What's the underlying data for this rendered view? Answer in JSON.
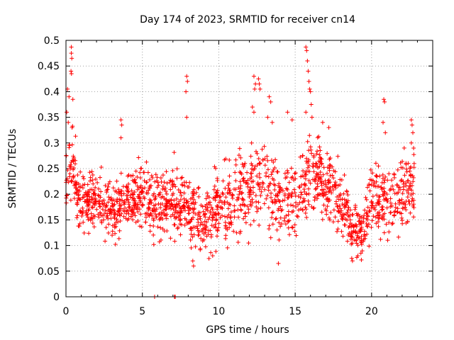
{
  "chart_data": {
    "type": "scatter",
    "title": "Day 174 of 2023, SRMTID for receiver cn14",
    "xlabel": "GPS time / hours",
    "ylabel": "SRMTID / TECUs",
    "xlim": [
      0,
      24
    ],
    "ylim": [
      0,
      0.5
    ],
    "xticks": [
      0,
      5,
      10,
      15,
      20
    ],
    "xtick_labels": [
      "0",
      "5",
      "10",
      "15",
      "20"
    ],
    "yticks": [
      0,
      0.05,
      0.1,
      0.15,
      0.2,
      0.25,
      0.3,
      0.35,
      0.4,
      0.45,
      0.5
    ],
    "ytick_labels": [
      "0",
      "0.05",
      "0.1",
      "0.15",
      "0.2",
      "0.25",
      "0.3",
      "0.35",
      "0.4",
      "0.45",
      "0.5"
    ],
    "grid": true,
    "marker": "+",
    "color": "#ff0000",
    "series": [
      {
        "name": "cn14",
        "x_range": [
          0,
          22.8
        ],
        "envelope": {
          "hours": [
            0,
            0.3,
            0.6,
            1,
            2,
            3,
            4,
            5,
            6,
            7,
            8,
            9,
            10,
            11,
            12,
            13,
            14,
            15,
            16,
            17,
            18,
            18.8,
            19.3,
            20,
            21,
            22,
            22.8
          ],
          "center": [
            0.22,
            0.27,
            0.22,
            0.18,
            0.19,
            0.17,
            0.18,
            0.2,
            0.17,
            0.19,
            0.17,
            0.15,
            0.17,
            0.19,
            0.22,
            0.22,
            0.18,
            0.19,
            0.25,
            0.22,
            0.19,
            0.13,
            0.13,
            0.19,
            0.19,
            0.2,
            0.22
          ],
          "spread": [
            0.05,
            0.08,
            0.06,
            0.05,
            0.05,
            0.05,
            0.05,
            0.06,
            0.06,
            0.06,
            0.06,
            0.05,
            0.06,
            0.07,
            0.08,
            0.08,
            0.06,
            0.07,
            0.07,
            0.06,
            0.06,
            0.04,
            0.04,
            0.06,
            0.06,
            0.06,
            0.06
          ]
        },
        "points": [
          [
            0.35,
            0.487
          ],
          [
            0.35,
            0.475
          ],
          [
            0.38,
            0.465
          ],
          [
            0.33,
            0.44
          ],
          [
            0.36,
            0.435
          ],
          [
            0.1,
            0.405
          ],
          [
            0.2,
            0.39
          ],
          [
            0.45,
            0.385
          ],
          [
            0.05,
            0.36
          ],
          [
            0.15,
            0.34
          ],
          [
            0.4,
            0.33
          ],
          [
            3.6,
            0.345
          ],
          [
            3.65,
            0.335
          ],
          [
            3.6,
            0.31
          ],
          [
            7.9,
            0.43
          ],
          [
            7.95,
            0.42
          ],
          [
            7.85,
            0.4
          ],
          [
            7.9,
            0.35
          ],
          [
            5.8,
            0.0
          ],
          [
            7.1,
            0.0
          ],
          [
            7.15,
            0.0
          ],
          [
            12.3,
            0.43
          ],
          [
            12.4,
            0.415
          ],
          [
            12.35,
            0.405
          ],
          [
            12.6,
            0.425
          ],
          [
            12.65,
            0.415
          ],
          [
            12.7,
            0.405
          ],
          [
            12.2,
            0.37
          ],
          [
            12.3,
            0.36
          ],
          [
            13.3,
            0.39
          ],
          [
            13.4,
            0.38
          ],
          [
            13.2,
            0.35
          ],
          [
            13.5,
            0.34
          ],
          [
            15.7,
            0.487
          ],
          [
            15.75,
            0.48
          ],
          [
            15.8,
            0.46
          ],
          [
            15.85,
            0.44
          ],
          [
            15.9,
            0.42
          ],
          [
            15.95,
            0.405
          ],
          [
            16.0,
            0.4
          ],
          [
            16.05,
            0.375
          ],
          [
            15.7,
            0.36
          ],
          [
            16.1,
            0.35
          ],
          [
            14.5,
            0.36
          ],
          [
            14.8,
            0.345
          ],
          [
            16.8,
            0.34
          ],
          [
            17.2,
            0.33
          ],
          [
            20.8,
            0.385
          ],
          [
            20.85,
            0.38
          ],
          [
            20.75,
            0.34
          ],
          [
            20.9,
            0.32
          ],
          [
            22.6,
            0.345
          ],
          [
            22.65,
            0.335
          ],
          [
            22.7,
            0.32
          ],
          [
            22.6,
            0.3
          ],
          [
            22.75,
            0.29
          ],
          [
            8.3,
            0.07
          ],
          [
            8.35,
            0.06
          ],
          [
            9.6,
            0.08
          ],
          [
            13.9,
            0.065
          ],
          [
            18.7,
            0.075
          ],
          [
            18.75,
            0.07
          ],
          [
            19.1,
            0.08
          ],
          [
            19.3,
            0.085
          ]
        ]
      }
    ]
  }
}
